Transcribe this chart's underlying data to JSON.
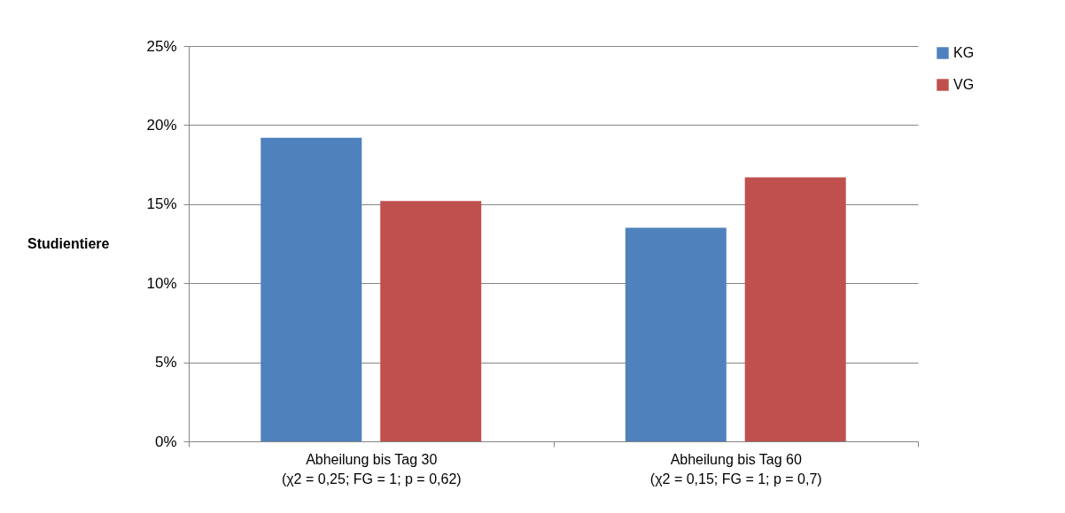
{
  "chart_data": {
    "type": "bar",
    "ylabel": "Studientiere",
    "categories": [
      "Abheilung bis Tag 30\n(χ2 = 0,25; FG = 1; p = 0,62)",
      "Abheilung bis Tag 60\n(χ2 = 0,15; FG = 1; p = 0,7)"
    ],
    "series": [
      {
        "name": "KG",
        "color": "#4f81bd",
        "values": [
          19.2,
          13.5
        ]
      },
      {
        "name": "VG",
        "color": "#c0504d",
        "values": [
          15.2,
          16.7
        ]
      }
    ],
    "ylim": [
      0,
      25
    ],
    "yticks": [
      {
        "value": 0,
        "label": "0%"
      },
      {
        "value": 5,
        "label": "5%"
      },
      {
        "value": 10,
        "label": "10%"
      },
      {
        "value": 15,
        "label": "15%"
      },
      {
        "value": 20,
        "label": "20%"
      },
      {
        "value": 25,
        "label": "25%"
      }
    ],
    "grid": "y",
    "legend": "right"
  }
}
